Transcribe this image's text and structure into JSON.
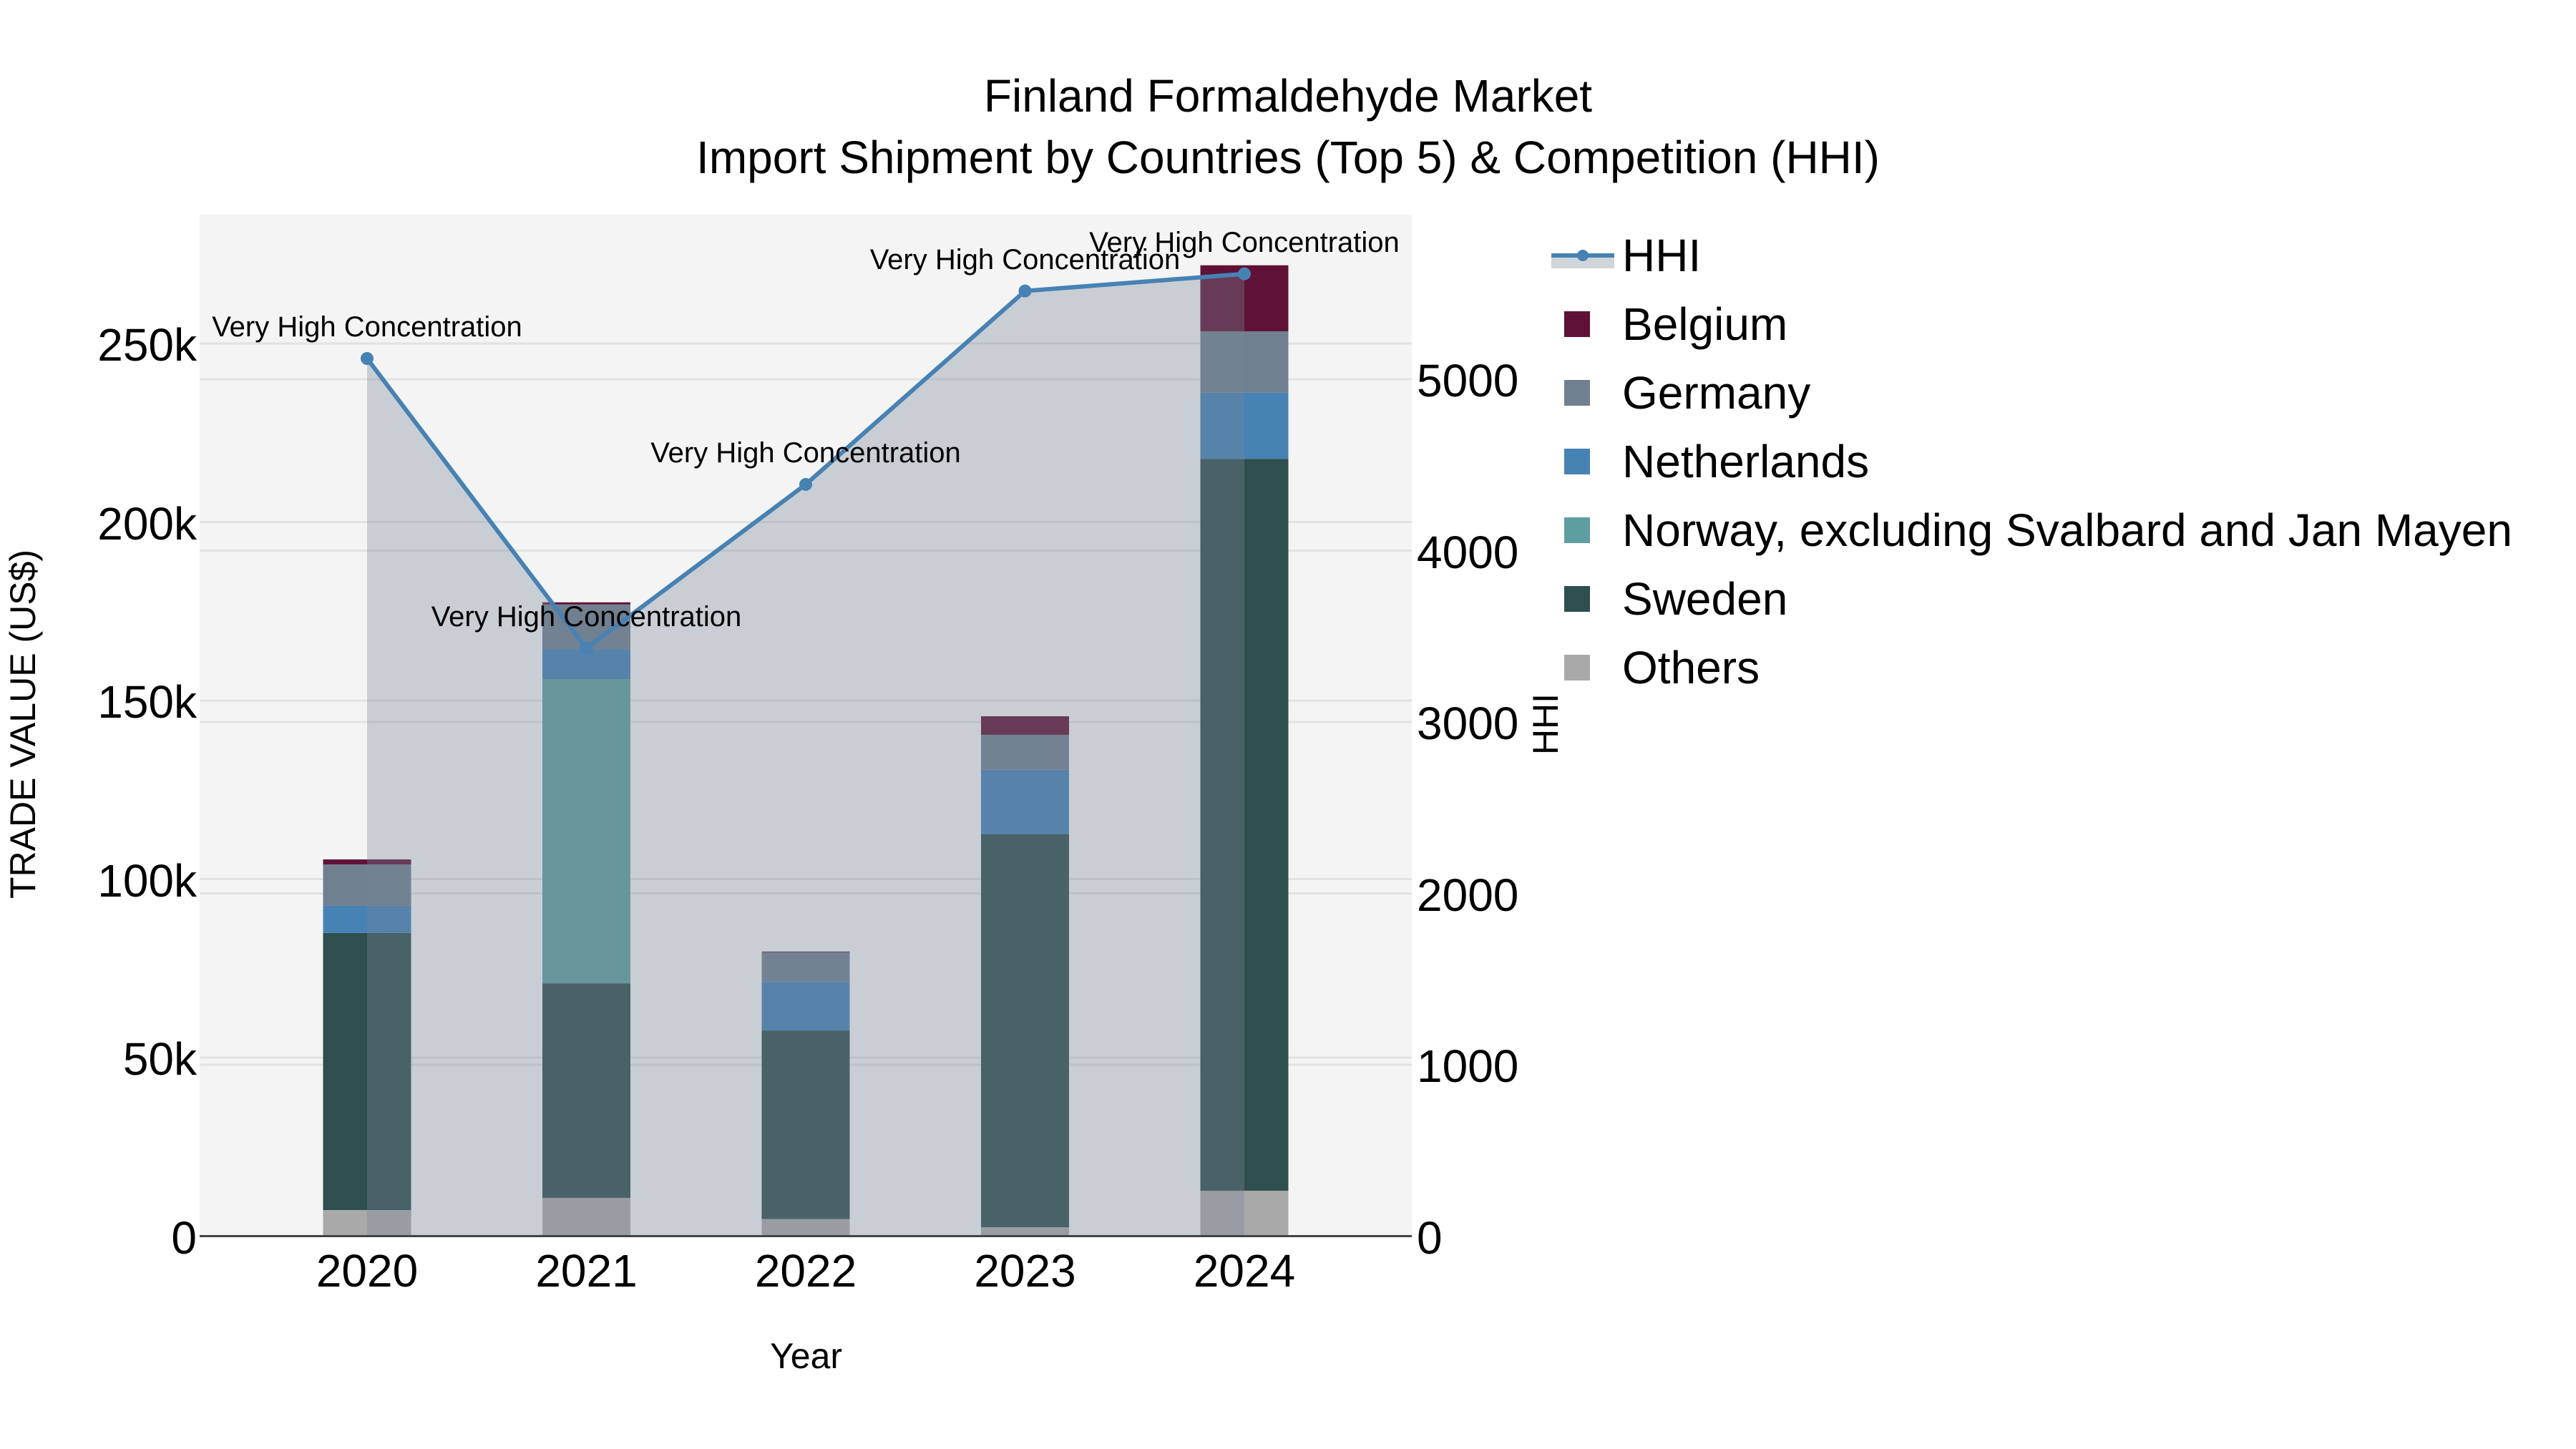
{
  "title": {
    "line1": "Finland Formaldehyde Market",
    "line2": "Import Shipment by Countries (Top 5) & Competition (HHI)"
  },
  "axes": {
    "x_title": "Year",
    "y_left_title": "TRADE VALUE (US$)",
    "y_right_title": "HHI",
    "y_left_ticks": [
      "0",
      "50k",
      "100k",
      "150k",
      "200k",
      "250k"
    ],
    "y_right_ticks": [
      "0",
      "1000",
      "2000",
      "3000",
      "4000",
      "5000"
    ],
    "x_ticks": [
      "2020",
      "2021",
      "2022",
      "2023",
      "2024"
    ]
  },
  "legend": {
    "items": [
      {
        "label": "HHI",
        "type": "line",
        "color": "#4682b4"
      },
      {
        "label": "Belgium",
        "type": "bar",
        "color": "#5f1236"
      },
      {
        "label": "Germany",
        "type": "bar",
        "color": "#708090"
      },
      {
        "label": "Netherlands",
        "type": "bar",
        "color": "#4682b4"
      },
      {
        "label": "Norway, excluding Svalbard and Jan Mayen",
        "type": "bar",
        "color": "#5f9ea0"
      },
      {
        "label": "Sweden",
        "type": "bar",
        "color": "#2f4f4f"
      },
      {
        "label": "Others",
        "type": "bar",
        "color": "#a9a9a9"
      }
    ]
  },
  "annotations": [
    {
      "year": "2020",
      "text": "Very High Concentration"
    },
    {
      "year": "2021",
      "text": "Very High Concentration"
    },
    {
      "year": "2022",
      "text": "Very High Concentration"
    },
    {
      "year": "2023",
      "text": "Very High Concentration"
    },
    {
      "year": "2024",
      "text": "Very High Concentration"
    }
  ],
  "colors": {
    "plot_bg": "#f4f4f4",
    "grid": "#e2e2e2",
    "hhi_line": "#4682b4",
    "hhi_fill": "rgba(119,136,153,0.35)",
    "axis_line": "#444444"
  },
  "chart_data": {
    "type": "bar",
    "subtype": "stacked bar + line (secondary axis)",
    "title": "Finland Formaldehyde Market — Import Shipment by Countries (Top 5) & Competition (HHI)",
    "xlabel": "Year",
    "ylabel": "TRADE VALUE (US$)",
    "y2label": "HHI",
    "categories": [
      "2020",
      "2021",
      "2022",
      "2023",
      "2024"
    ],
    "ylim": [
      0,
      287000
    ],
    "y2lim": [
      0,
      5990
    ],
    "grid": true,
    "legend_position": "right",
    "series": [
      {
        "name": "Others",
        "axis": "y",
        "color": "#a9a9a9",
        "values": [
          7300,
          10700,
          4800,
          2500,
          12700
        ]
      },
      {
        "name": "Sweden",
        "axis": "y",
        "color": "#2f4f4f",
        "values": [
          77600,
          60100,
          52800,
          110100,
          205000
        ]
      },
      {
        "name": "Norway, excluding Svalbard and Jan Mayen",
        "axis": "y",
        "color": "#5f9ea0",
        "values": [
          0,
          85200,
          0,
          0,
          0
        ]
      },
      {
        "name": "Netherlands",
        "axis": "y",
        "color": "#4682b4",
        "values": [
          7600,
          8400,
          13600,
          18000,
          18500
        ]
      },
      {
        "name": "Germany",
        "axis": "y",
        "color": "#708090",
        "values": [
          11600,
          12500,
          8300,
          9800,
          17200
        ]
      },
      {
        "name": "Belgium",
        "axis": "y",
        "color": "#5f1236",
        "values": [
          1400,
          600,
          200,
          5200,
          18500
        ]
      },
      {
        "name": "HHI",
        "axis": "y2",
        "type": "line",
        "color": "#4682b4",
        "values": [
          5121,
          3430,
          4386,
          5515,
          5615
        ]
      }
    ],
    "annotations": [
      "Very High Concentration",
      "Very High Concentration",
      "Very High Concentration",
      "Very High Concentration",
      "Very High Concentration"
    ]
  }
}
